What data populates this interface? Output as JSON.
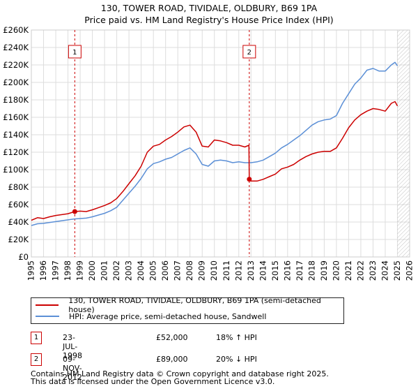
{
  "title": {
    "line1": "130, TOWER ROAD, TIVIDALE, OLDBURY, B69 1PA",
    "line2": "Price paid vs. HM Land Registry's House Price Index (HPI)"
  },
  "colors": {
    "price_line": "#cc0000",
    "hpi_line": "#5b8fd6",
    "grid": "#dddddd",
    "marker_line": "#cc0000",
    "hatch": "#999999"
  },
  "legend": {
    "price_label": "130, TOWER ROAD, TIVIDALE, OLDBURY, B69 1PA (semi-detached house)",
    "hpi_label": "HPI: Average price, semi-detached house, Sandwell"
  },
  "transactions": [
    {
      "num": "1",
      "date": "23-JUL-1998",
      "price": "£52,000",
      "hpi": "18% ↑ HPI"
    },
    {
      "num": "2",
      "date": "09-NOV-2012",
      "price": "£89,000",
      "hpi": "20% ↓ HPI"
    }
  ],
  "footer": {
    "line1": "Contains HM Land Registry data © Crown copyright and database right 2025.",
    "line2": "This data is licensed under the Open Government Licence v3.0."
  },
  "chart_data": {
    "type": "line",
    "title": "130, TOWER ROAD, TIVIDALE, OLDBURY, B69 1PA — Price paid vs. HM Land Registry's House Price Index (HPI)",
    "xlabel": "",
    "ylabel": "",
    "xlim": [
      1995,
      2026
    ],
    "ylim": [
      0,
      260000
    ],
    "x_ticks": [
      1995,
      1996,
      1997,
      1998,
      1999,
      2000,
      2001,
      2002,
      2003,
      2004,
      2005,
      2006,
      2007,
      2008,
      2009,
      2010,
      2011,
      2012,
      2013,
      2014,
      2015,
      2016,
      2017,
      2018,
      2019,
      2020,
      2021,
      2022,
      2023,
      2024,
      2025,
      2026
    ],
    "x_tick_labels": [
      "1995",
      "1996",
      "1997",
      "1998",
      "1999",
      "2000",
      "2001",
      "2002",
      "2003",
      "2004",
      "2005",
      "2006",
      "2007",
      "2008",
      "2009",
      "2010",
      "2011",
      "2012",
      "2013",
      "2014",
      "2015",
      "2016",
      "2017",
      "2018",
      "2019",
      "2020",
      "2021",
      "2022",
      "2023",
      "2024",
      "2025",
      "2026"
    ],
    "y_ticks": [
      0,
      20000,
      40000,
      60000,
      80000,
      100000,
      120000,
      140000,
      160000,
      180000,
      200000,
      220000,
      240000,
      260000
    ],
    "y_tick_labels": [
      "£0",
      "£20K",
      "£40K",
      "£60K",
      "£80K",
      "£100K",
      "£120K",
      "£140K",
      "£160K",
      "£180K",
      "£200K",
      "£220K",
      "£240K",
      "£260K"
    ],
    "grid": true,
    "hatched_future_from": 2025.0,
    "annotations": [
      {
        "label": "1",
        "x": 1998.56,
        "y": 52000
      },
      {
        "label": "2",
        "x": 2012.86,
        "y": 89000
      }
    ],
    "series": [
      {
        "name": "130, TOWER ROAD, TIVIDALE, OLDBURY, B69 1PA (semi-detached house)",
        "color": "#cc0000",
        "x": [
          1995,
          1995.5,
          1996,
          1996.5,
          1997,
          1997.5,
          1998,
          1998.56,
          1999,
          1999.5,
          2000,
          2000.5,
          2001,
          2001.5,
          2002,
          2002.5,
          2003,
          2003.5,
          2004,
          2004.5,
          2005,
          2005.5,
          2006,
          2006.5,
          2007,
          2007.5,
          2008,
          2008.5,
          2009,
          2009.5,
          2010,
          2010.5,
          2011,
          2011.5,
          2012,
          2012.5,
          2012.83,
          2012.86,
          2013,
          2013.5,
          2014,
          2014.5,
          2015,
          2015.5,
          2016,
          2016.5,
          2017,
          2017.5,
          2018,
          2018.5,
          2019,
          2019.5,
          2020,
          2020.5,
          2021,
          2021.5,
          2022,
          2022.5,
          2023,
          2023.5,
          2024,
          2024.5,
          2024.8,
          2025
        ],
        "values": [
          42000,
          45000,
          44000,
          46000,
          47500,
          48500,
          49500,
          52000,
          52500,
          52000,
          54000,
          56500,
          59000,
          62000,
          67000,
          75000,
          84000,
          93000,
          104000,
          120000,
          127000,
          129000,
          134000,
          138000,
          143000,
          149000,
          151000,
          143000,
          127000,
          126000,
          134000,
          133000,
          131000,
          128000,
          128000,
          126000,
          128000,
          89000,
          87000,
          87000,
          89000,
          92000,
          95000,
          101000,
          103000,
          106000,
          111000,
          115000,
          118000,
          120000,
          121000,
          121000,
          125000,
          136000,
          148000,
          157000,
          163000,
          167000,
          170000,
          169000,
          167000,
          176000,
          178000,
          173000
        ]
      },
      {
        "name": "HPI: Average price, semi-detached house, Sandwell",
        "color": "#5b8fd6",
        "x": [
          1995,
          1995.5,
          1996,
          1996.5,
          1997,
          1997.5,
          1998,
          1998.5,
          1999,
          1999.5,
          2000,
          2000.5,
          2001,
          2001.5,
          2002,
          2002.5,
          2003,
          2003.5,
          2004,
          2004.5,
          2005,
          2005.5,
          2006,
          2006.5,
          2007,
          2007.5,
          2008,
          2008.5,
          2009,
          2009.5,
          2010,
          2010.5,
          2011,
          2011.5,
          2012,
          2012.5,
          2013,
          2013.5,
          2014,
          2014.5,
          2015,
          2015.5,
          2016,
          2016.5,
          2017,
          2017.5,
          2018,
          2018.5,
          2019,
          2019.5,
          2020,
          2020.5,
          2021,
          2021.5,
          2022,
          2022.5,
          2023,
          2023.5,
          2024,
          2024.5,
          2024.8,
          2025
        ],
        "values": [
          36000,
          38000,
          38500,
          39500,
          40500,
          41500,
          42500,
          43500,
          44000,
          44500,
          46000,
          48000,
          50000,
          53000,
          57000,
          65000,
          73000,
          81000,
          90000,
          101000,
          107000,
          109000,
          112000,
          114000,
          118000,
          122000,
          125000,
          118000,
          106000,
          104000,
          110000,
          111000,
          110000,
          108000,
          109000,
          108000,
          108000,
          109000,
          111000,
          115000,
          119000,
          125000,
          129000,
          134000,
          139000,
          145000,
          151000,
          155000,
          157000,
          158000,
          162000,
          176000,
          187000,
          198000,
          205000,
          214000,
          216000,
          213000,
          213000,
          220000,
          223000,
          219000
        ]
      }
    ]
  }
}
